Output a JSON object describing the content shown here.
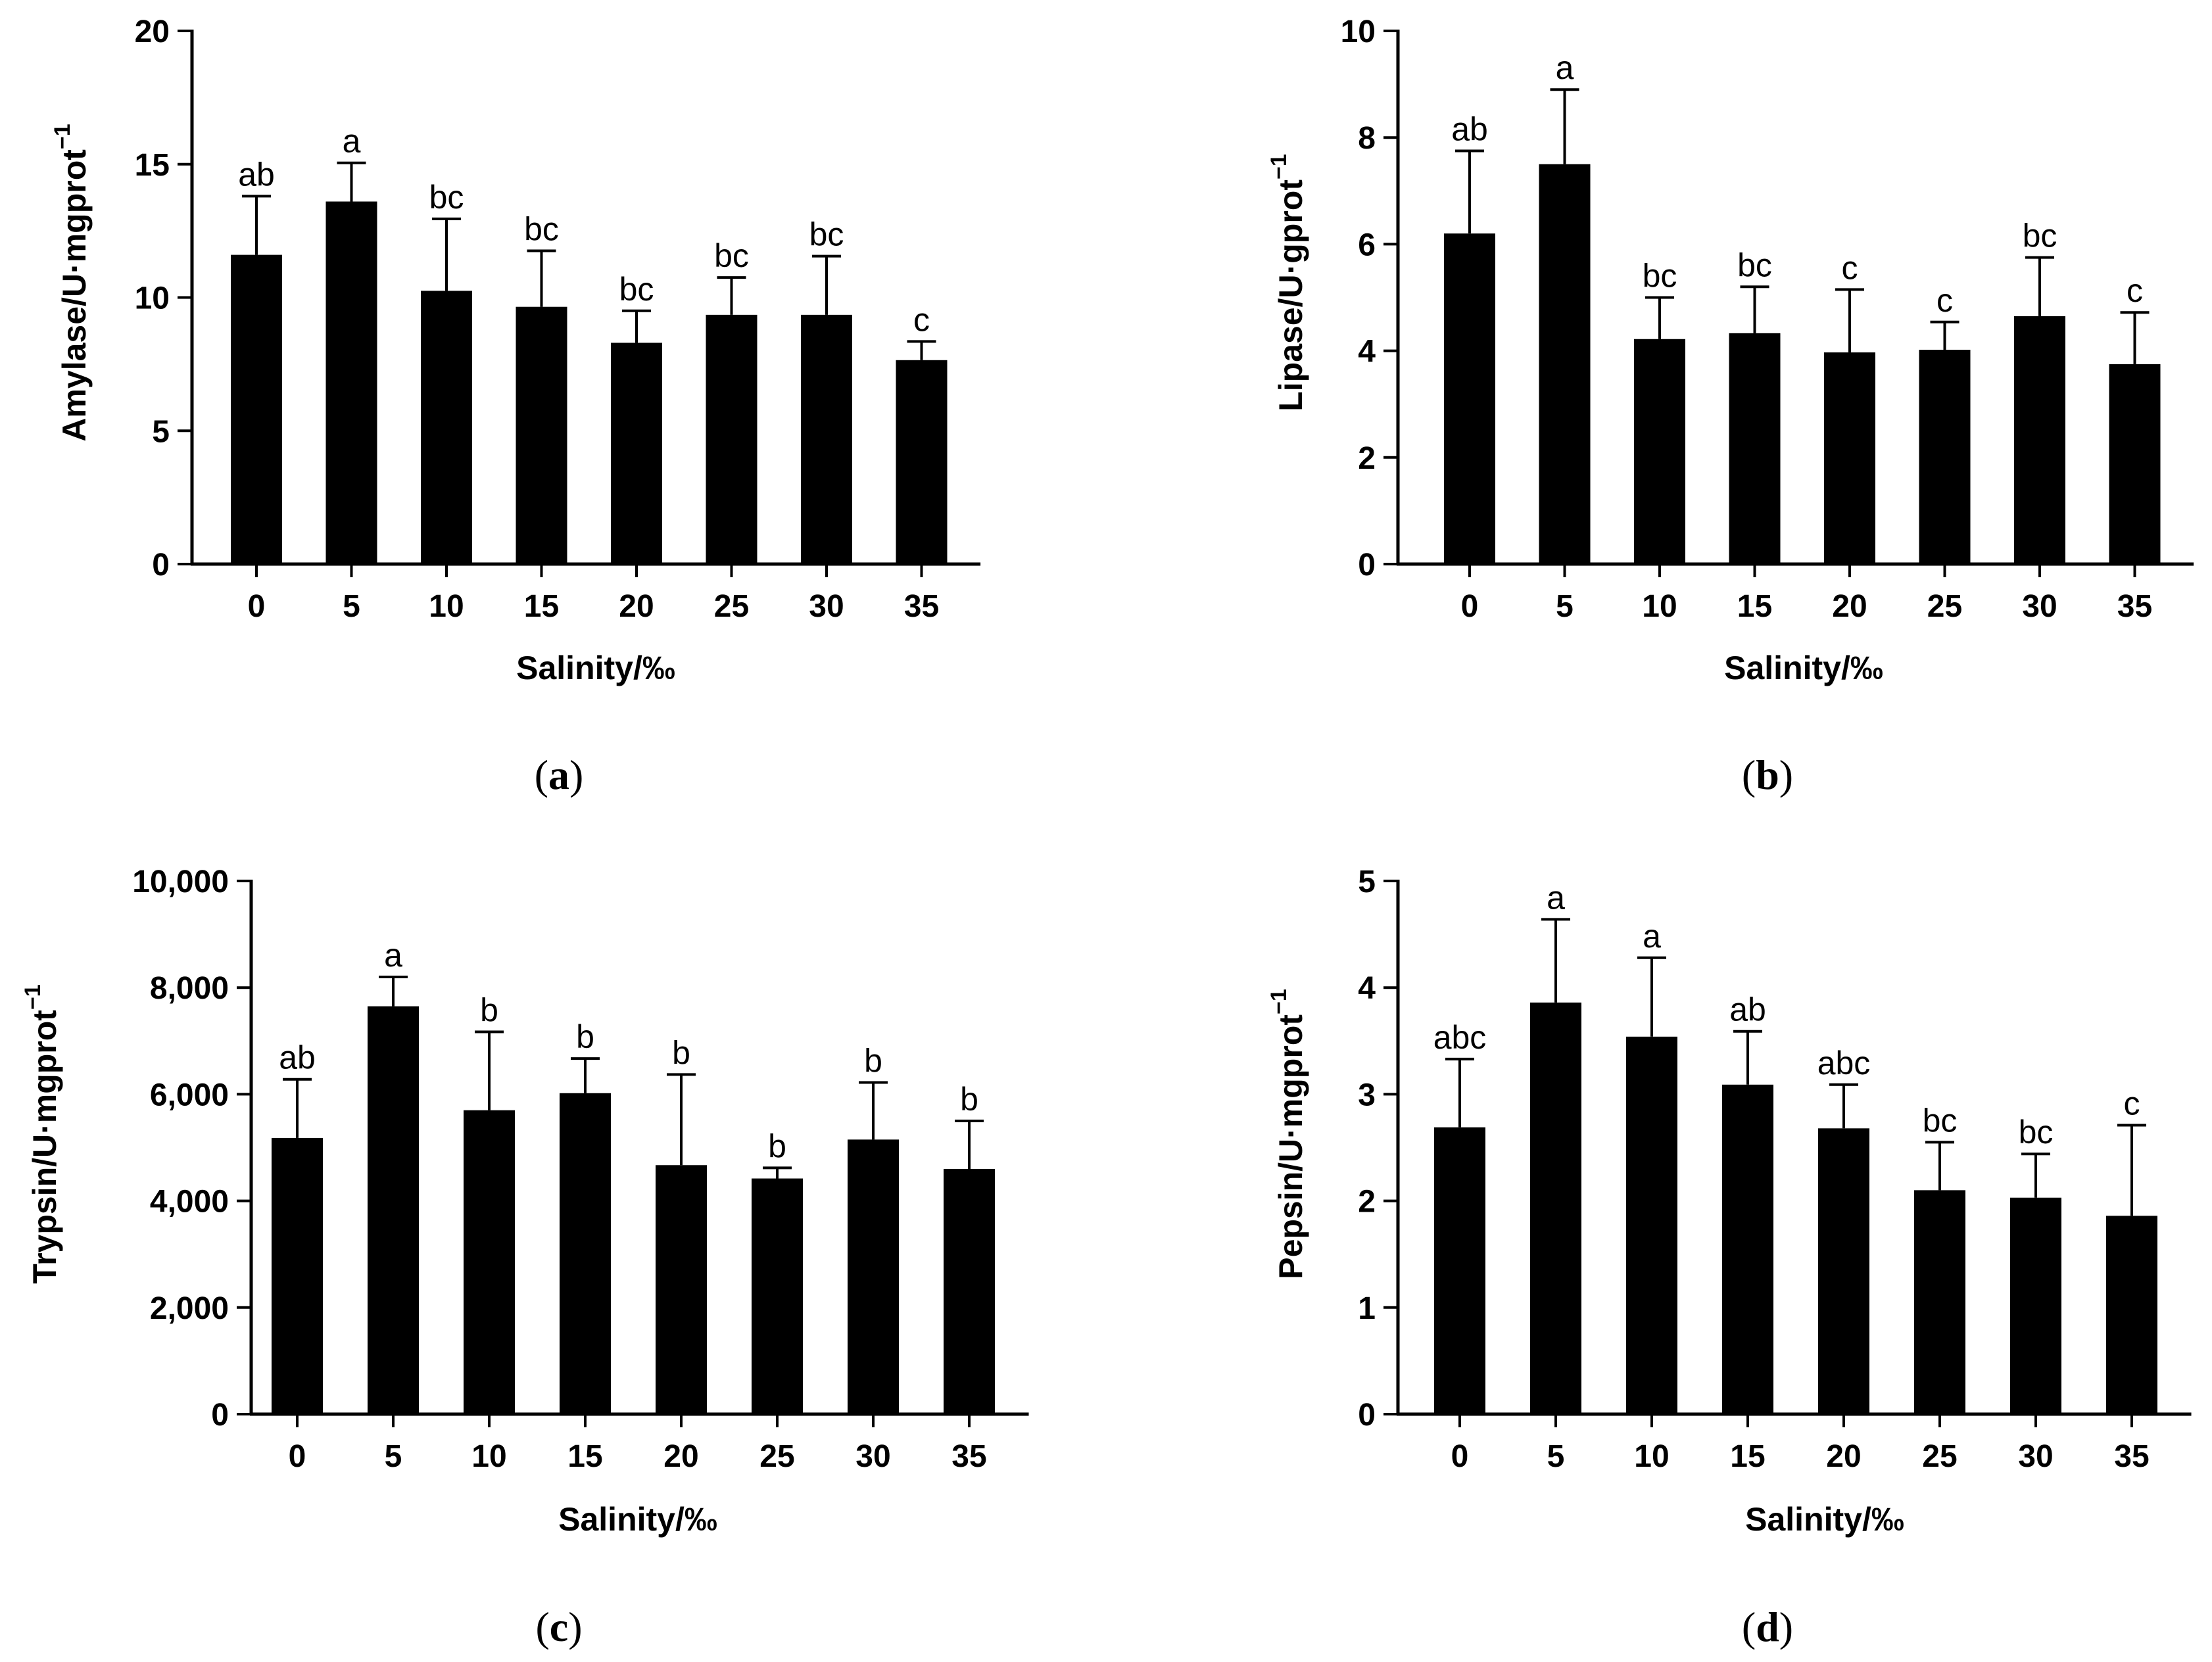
{
  "chart_data": [
    {
      "id": "a",
      "type": "bar",
      "panel_label": "a",
      "categories": [
        "0",
        "5",
        "10",
        "15",
        "20",
        "25",
        "30",
        "35"
      ],
      "values": [
        11.6,
        13.6,
        10.25,
        9.65,
        8.3,
        9.35,
        9.35,
        7.65
      ],
      "errors": [
        2.2,
        1.45,
        2.7,
        2.1,
        1.2,
        1.4,
        2.2,
        0.7
      ],
      "letters": [
        "ab",
        "a",
        "bc",
        "bc",
        "bc",
        "bc",
        "bc",
        "c"
      ],
      "ylim": [
        0,
        20
      ],
      "yticks": [
        0,
        5,
        10,
        15,
        20
      ],
      "ytick_labels": [
        "0",
        "5",
        "10",
        "15",
        "20"
      ],
      "ylabel_main": "Amylase/U·mgprot",
      "ylabel_sup": "−1",
      "xlabel": "Salinity/‰",
      "bar_color": "#000000"
    },
    {
      "id": "b",
      "type": "bar",
      "panel_label": "b",
      "categories": [
        "0",
        "5",
        "10",
        "15",
        "20",
        "25",
        "30",
        "35"
      ],
      "values": [
        6.2,
        7.5,
        4.22,
        4.33,
        3.97,
        4.02,
        4.65,
        3.75
      ],
      "errors": [
        1.55,
        1.4,
        0.78,
        0.87,
        1.18,
        0.52,
        1.1,
        0.97
      ],
      "letters": [
        "ab",
        "a",
        "bc",
        "bc",
        "c",
        "c",
        "bc",
        "c"
      ],
      "ylim": [
        0,
        10
      ],
      "yticks": [
        0,
        2,
        4,
        6,
        8,
        10
      ],
      "ytick_labels": [
        "0",
        "2",
        "4",
        "6",
        "8",
        "10"
      ],
      "ylabel_main": "Lipase/U·gprot",
      "ylabel_sup": "−1",
      "xlabel": "Salinity/‰",
      "bar_color": "#000000"
    },
    {
      "id": "c",
      "type": "bar",
      "panel_label": "c",
      "categories": [
        "0",
        "5",
        "10",
        "15",
        "20",
        "25",
        "30",
        "35"
      ],
      "values": [
        5180,
        7650,
        5700,
        6020,
        4670,
        4420,
        5150,
        4600
      ],
      "errors": [
        1100,
        550,
        1470,
        650,
        1700,
        200,
        1070,
        900
      ],
      "letters": [
        "ab",
        "a",
        "b",
        "b",
        "b",
        "b",
        "b",
        "b"
      ],
      "ylim": [
        0,
        10000
      ],
      "yticks": [
        0,
        2000,
        4000,
        6000,
        8000,
        10000
      ],
      "ytick_labels": [
        "0",
        "2,000",
        "4,000",
        "6,000",
        "8,000",
        "10,000"
      ],
      "ylabel_main": "Trypsin/U·mgprot",
      "ylabel_sup": "−1",
      "xlabel": "Salinity/‰",
      "bar_color": "#000000"
    },
    {
      "id": "d",
      "type": "bar",
      "panel_label": "d",
      "categories": [
        "0",
        "5",
        "10",
        "15",
        "20",
        "25",
        "30",
        "35"
      ],
      "values": [
        2.69,
        3.86,
        3.54,
        3.09,
        2.68,
        2.1,
        2.03,
        1.86
      ],
      "errors": [
        0.64,
        0.78,
        0.74,
        0.5,
        0.41,
        0.45,
        0.41,
        0.85
      ],
      "letters": [
        "abc",
        "a",
        "a",
        "ab",
        "abc",
        "bc",
        "bc",
        "c"
      ],
      "ylim": [
        0,
        5
      ],
      "yticks": [
        0,
        1,
        2,
        3,
        4,
        5
      ],
      "ytick_labels": [
        "0",
        "1",
        "2",
        "3",
        "4",
        "5"
      ],
      "ylabel_main": "Pepsin/U·mgprot",
      "ylabel_sup": "−1",
      "xlabel": "Salinity/‰",
      "bar_color": "#000000"
    }
  ]
}
